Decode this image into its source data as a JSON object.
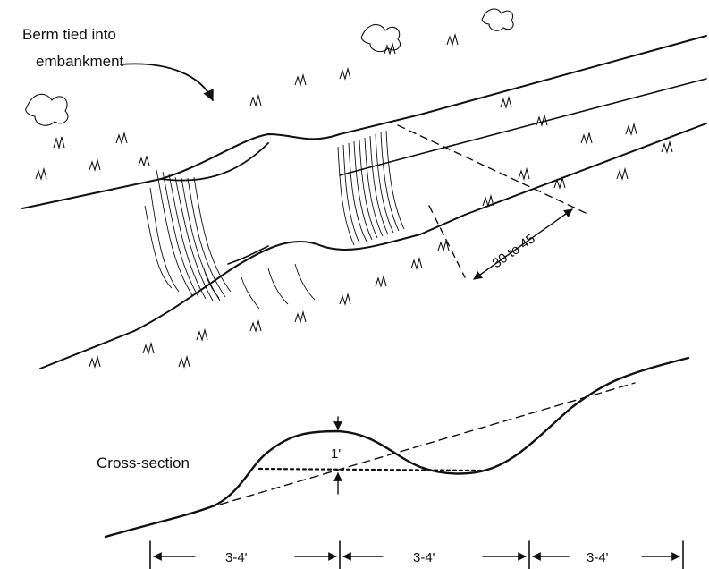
{
  "diagram": {
    "callout_line1": "Berm tied into",
    "callout_line2": "embankment",
    "angle_range": "30 to 45",
    "section_label": "Cross-section",
    "height_label": "1'",
    "spacing_labels": [
      "3-4'",
      "3-4'",
      "3-4'"
    ]
  }
}
